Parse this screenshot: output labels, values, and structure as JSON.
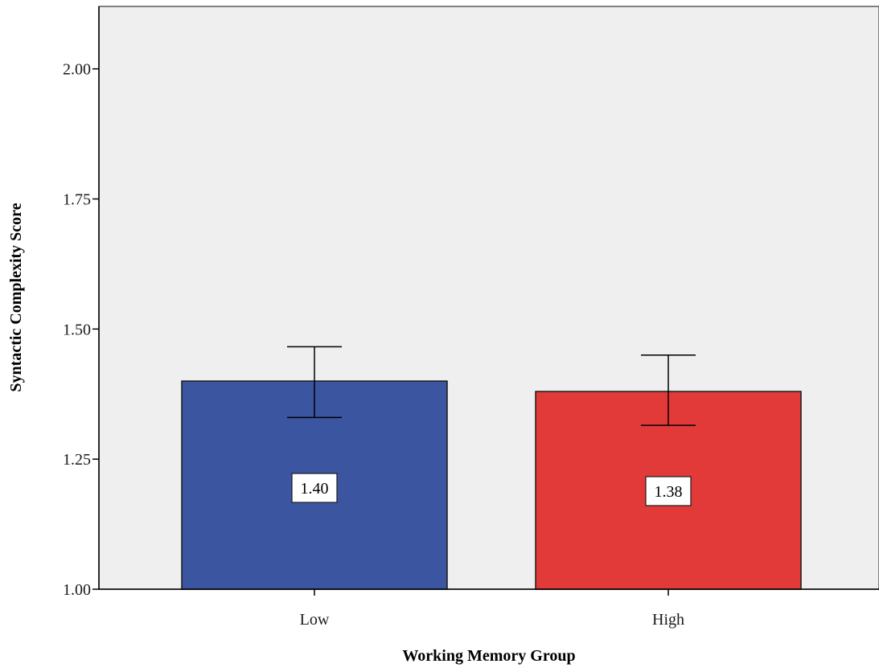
{
  "chart_data": {
    "type": "bar",
    "categories": [
      "Low",
      "High"
    ],
    "values": [
      1.4,
      1.38
    ],
    "data_labels": [
      "1.40",
      "1.38"
    ],
    "error_bars": [
      {
        "low": 1.33,
        "high": 1.466
      },
      {
        "low": 1.315,
        "high": 1.45
      }
    ],
    "xlabel": "Working Memory Group",
    "ylabel": "Syntactic Complexity Score",
    "ylim": [
      1.0,
      2.12
    ],
    "yticks": [
      1.0,
      1.25,
      1.5,
      1.75,
      2.0
    ],
    "ytick_labels": [
      "1.00",
      "1.25",
      "1.50",
      "1.75",
      "2.00"
    ],
    "grid": false,
    "colors": {
      "bars": [
        "#3b55a0",
        "#e13a39"
      ],
      "plot_background": "#efefef",
      "axis": "#000000",
      "error_bar": "#000000"
    }
  }
}
